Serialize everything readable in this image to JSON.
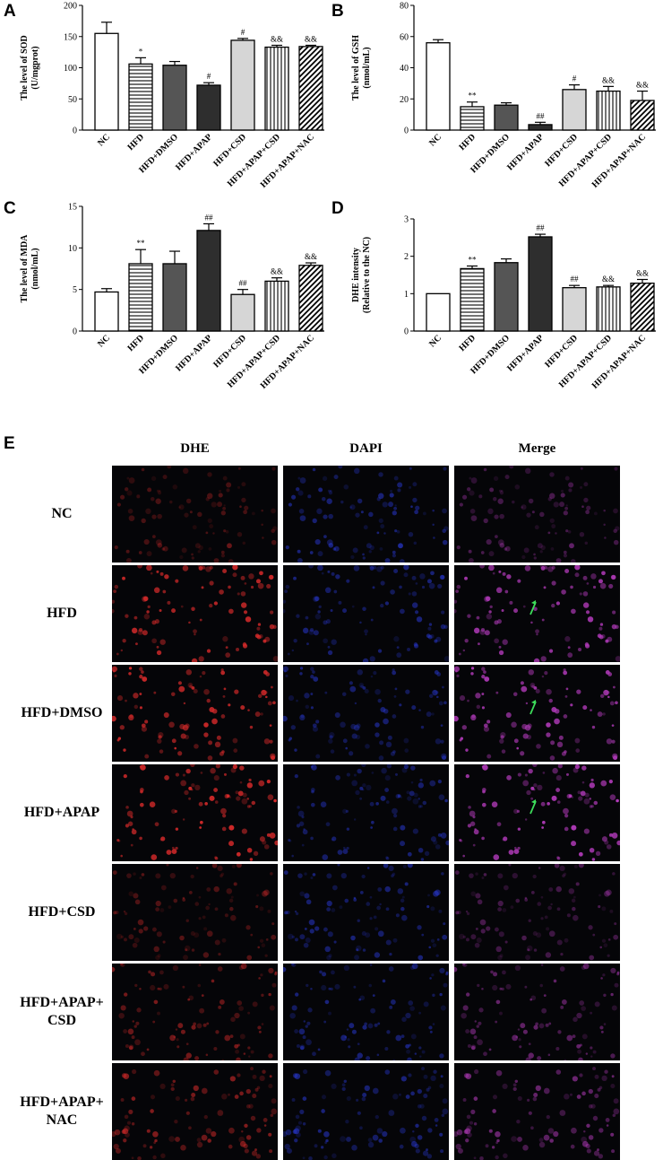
{
  "panels": [
    "A",
    "B",
    "C",
    "D",
    "E"
  ],
  "chart_data": [
    {
      "type": "bar",
      "panel": "A",
      "ylabel_lines": [
        "The level of SOD",
        "(U/mgprot)"
      ],
      "categories": [
        "NC",
        "HFD",
        "HFD+DMSO",
        "HFD+APAP",
        "HFD+CSD",
        "HFD+APAP+CSD",
        "HFD+APAP+NAC"
      ],
      "values": [
        155,
        106,
        104,
        72,
        144,
        133,
        134
      ],
      "errors": [
        18,
        10,
        6,
        4,
        3,
        3,
        2
      ],
      "significance": [
        "",
        "*",
        "",
        "#",
        "#",
        "&&",
        "&&"
      ],
      "ylim": [
        0,
        200
      ],
      "yticks": [
        0,
        50,
        100,
        150,
        200
      ]
    },
    {
      "type": "bar",
      "panel": "B",
      "ylabel_lines": [
        "The level of GSH",
        "(nmol/mL)"
      ],
      "categories": [
        "NC",
        "HFD",
        "HFD+DMSO",
        "HFD+APAP",
        "HFD+CSD",
        "HFD+APAP+CSD",
        "HFD+APAP+NAC"
      ],
      "values": [
        56,
        15,
        16,
        3.5,
        26,
        25,
        19
      ],
      "errors": [
        2,
        3,
        1.5,
        1.5,
        3,
        3,
        6
      ],
      "significance": [
        "",
        "**",
        "",
        "##",
        "#",
        "&&",
        "&&"
      ],
      "ylim": [
        0,
        80
      ],
      "yticks": [
        0,
        20,
        40,
        60,
        80
      ]
    },
    {
      "type": "bar",
      "panel": "C",
      "ylabel_lines": [
        "The level of MDA",
        "(nmol/mL)"
      ],
      "categories": [
        "NC",
        "HFD",
        "HFD+DMSO",
        "HFD+APAP",
        "HFD+CSD",
        "HFD+APAP+CSD",
        "HFD+APAP+NAC"
      ],
      "values": [
        4.7,
        8.1,
        8.1,
        12.1,
        4.4,
        6.0,
        7.9
      ],
      "errors": [
        0.4,
        1.7,
        1.5,
        0.8,
        0.6,
        0.4,
        0.3
      ],
      "significance": [
        "",
        "**",
        "",
        "##",
        "##",
        "&&",
        "&&"
      ],
      "ylim": [
        0,
        15
      ],
      "yticks": [
        0,
        5,
        10,
        15
      ]
    },
    {
      "type": "bar",
      "panel": "D",
      "ylabel_lines": [
        "DHE intensity",
        "(Relative to the NC)"
      ],
      "categories": [
        "NC",
        "HFD",
        "HFD+DMSO",
        "HFD+APAP",
        "HFD+CSD",
        "HFD+APAP+CSD",
        "HFD+APAP+NAC"
      ],
      "values": [
        1.0,
        1.67,
        1.83,
        2.52,
        1.16,
        1.18,
        1.28
      ],
      "errors": [
        0,
        0.07,
        0.1,
        0.07,
        0.06,
        0.04,
        0.1
      ],
      "significance": [
        "",
        "**",
        "",
        "##",
        "##",
        "&&",
        "&&"
      ],
      "ylim": [
        0,
        3
      ],
      "yticks": [
        0,
        1,
        2,
        3
      ]
    }
  ],
  "micrograph": {
    "column_headers": [
      "DHE",
      "DAPI",
      "Merge"
    ],
    "row_labels": [
      [
        "NC"
      ],
      [
        "HFD"
      ],
      [
        "HFD+DMSO"
      ],
      [
        "HFD+APAP"
      ],
      [
        "HFD+CSD"
      ],
      [
        "HFD+APAP+",
        "CSD"
      ],
      [
        "HFD+APAP+",
        "NAC"
      ]
    ],
    "channel_colors": {
      "dhe": "#d42a2a",
      "dapi": "#2a3ad8",
      "merge": "#b03ab8"
    },
    "arrow_color": "#3ddc5a",
    "row_intensity": [
      0.35,
      0.9,
      0.95,
      1.0,
      0.4,
      0.55,
      0.6
    ],
    "arrow_rows": [
      1,
      2,
      3
    ]
  },
  "bar_styles": {
    "fills": [
      "#ffffff",
      "hstripe",
      "#555555",
      "#2e2e2e",
      "#d6d6d6",
      "vstripe",
      "dstripe"
    ]
  }
}
